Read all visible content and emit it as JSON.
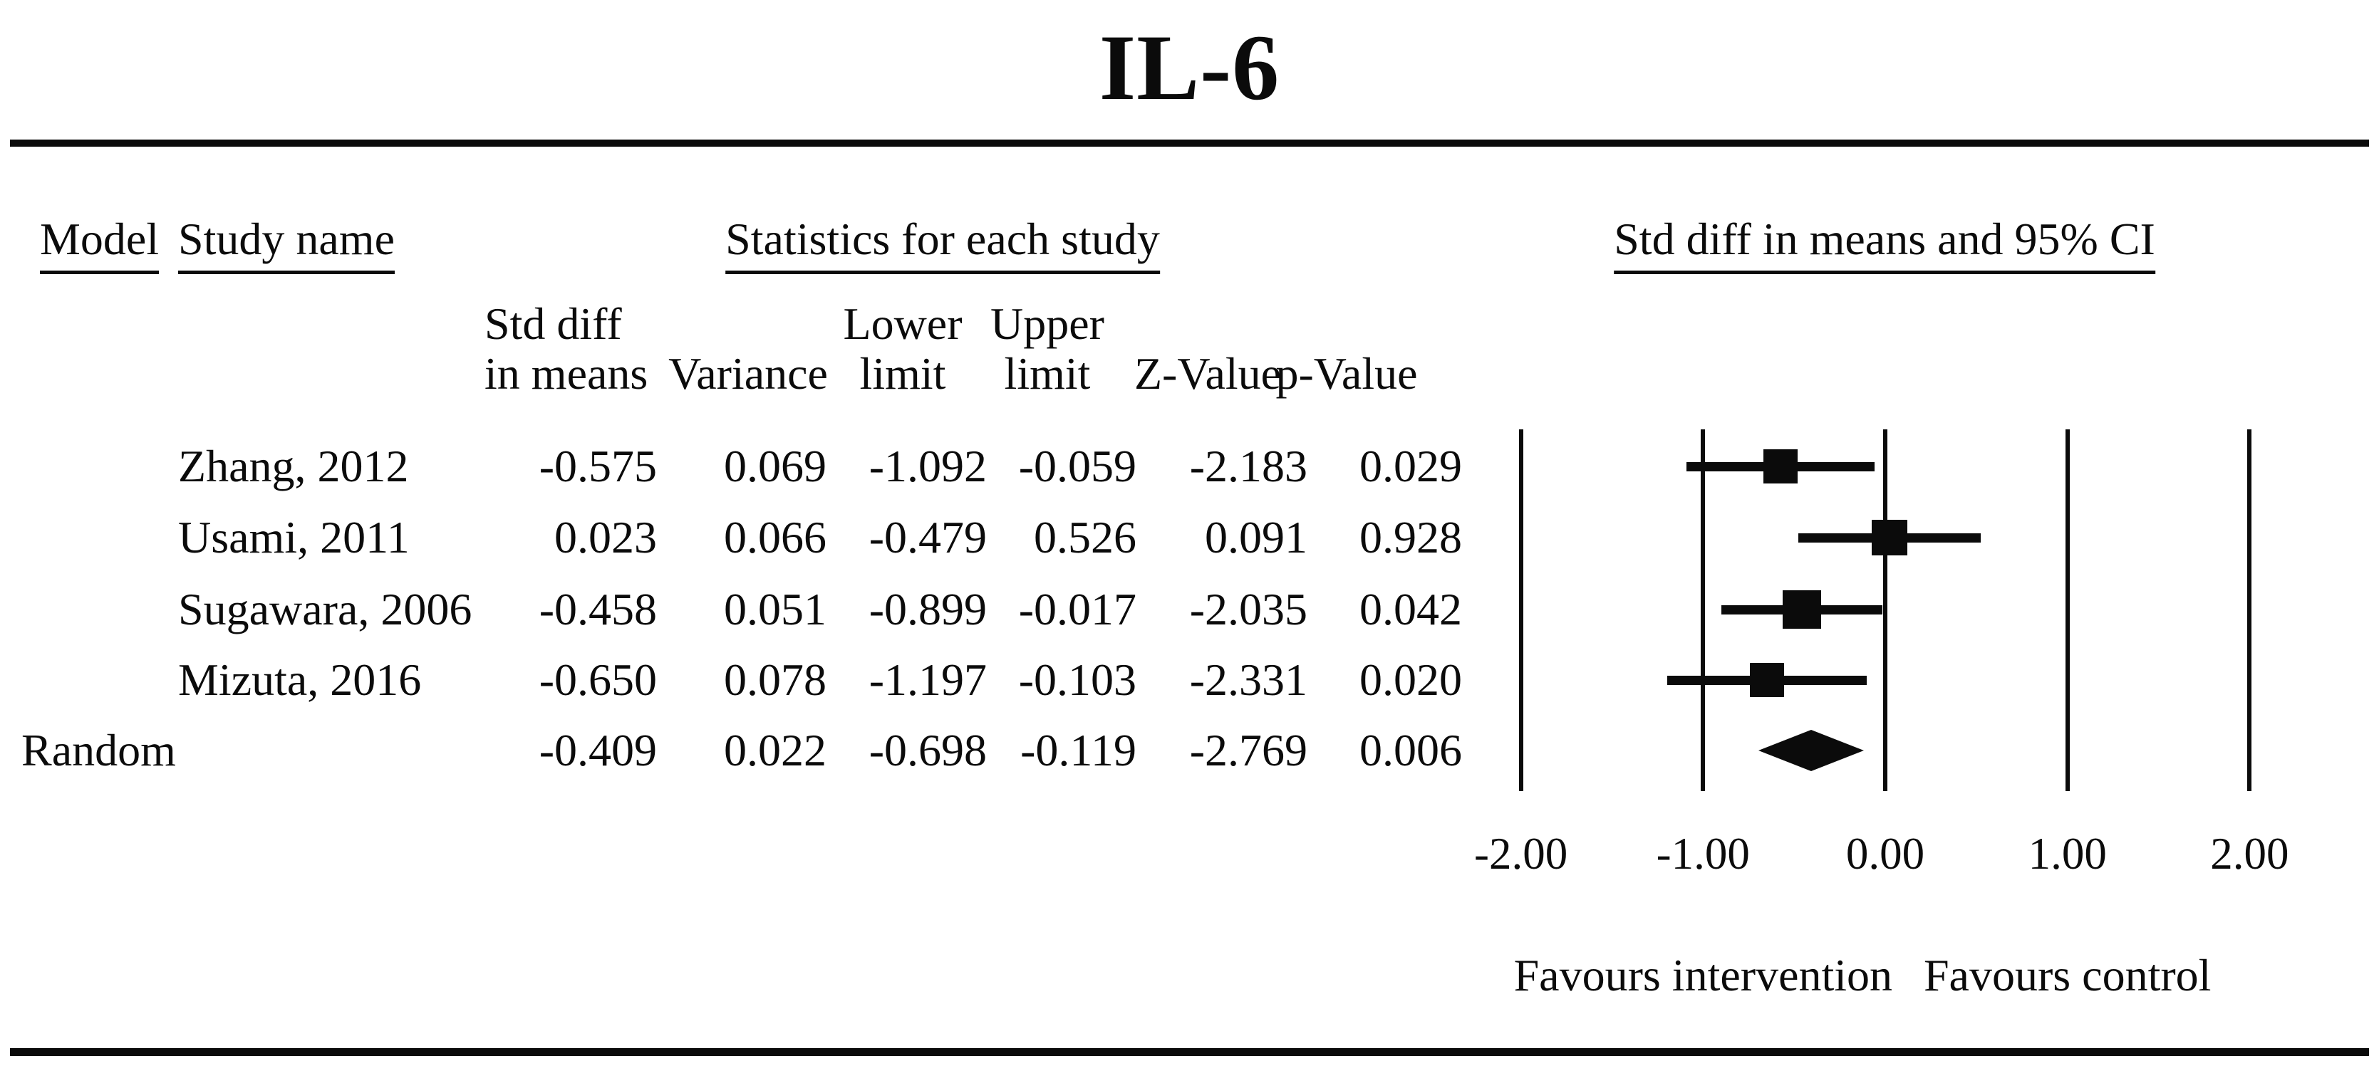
{
  "title": "IL-6",
  "header": {
    "model": "Model",
    "study_name": "Study name",
    "stats_group": "Statistics for each study",
    "plot_group": "Std diff in means and 95% CI",
    "sub_columns": [
      {
        "line1": "Std diff",
        "line2": "in means"
      },
      {
        "line1": "",
        "line2": "Variance"
      },
      {
        "line1": "Lower",
        "line2": "limit"
      },
      {
        "line1": "Upper",
        "line2": "limit"
      },
      {
        "line1": "",
        "line2": "Z-Value"
      },
      {
        "line1": "",
        "line2": "p-Value"
      }
    ]
  },
  "table": {
    "rows": [
      {
        "model": "",
        "study": "Zhang, 2012",
        "std_diff": "-0.575",
        "variance": "0.069",
        "lower": "-1.092",
        "upper": "-0.059",
        "z": "-2.183",
        "p": "0.029"
      },
      {
        "model": "",
        "study": "Usami, 2011",
        "std_diff": "0.023",
        "variance": "0.066",
        "lower": "-0.479",
        "upper": "0.526",
        "z": "0.091",
        "p": "0.928"
      },
      {
        "model": "",
        "study": "Sugawara, 2006",
        "std_diff": "-0.458",
        "variance": "0.051",
        "lower": "-0.899",
        "upper": "-0.017",
        "z": "-2.035",
        "p": "0.042"
      },
      {
        "model": "",
        "study": "Mizuta, 2016",
        "std_diff": "-0.650",
        "variance": "0.078",
        "lower": "-1.197",
        "upper": "-0.103",
        "z": "-2.331",
        "p": "0.020"
      },
      {
        "model": "Random",
        "study": "",
        "std_diff": "-0.409",
        "variance": "0.022",
        "lower": "-0.698",
        "upper": "-0.119",
        "z": "-2.769",
        "p": "0.006"
      }
    ]
  },
  "chart_data": {
    "type": "forest",
    "title": "IL-6",
    "effect_measure_label": "Std diff in means and 95% CI",
    "x_axis": {
      "tick_labels": [
        "-2.00",
        "-1.00",
        "0.00",
        "1.00",
        "2.00"
      ],
      "tick_values": [
        -2,
        -1,
        0,
        1,
        2
      ],
      "grid": "vertical-lines"
    },
    "studies": [
      {
        "name": "Zhang, 2012",
        "std_diff": -0.575,
        "lower": -1.092,
        "upper": -0.059,
        "marker": "square"
      },
      {
        "name": "Usami, 2011",
        "std_diff": 0.023,
        "lower": -0.479,
        "upper": 0.526,
        "marker": "square"
      },
      {
        "name": "Sugawara, 2006",
        "std_diff": -0.458,
        "lower": -0.899,
        "upper": -0.017,
        "marker": "square"
      },
      {
        "name": "Mizuta, 2016",
        "std_diff": -0.65,
        "lower": -1.197,
        "upper": -0.103,
        "marker": "square"
      },
      {
        "name": "Random",
        "std_diff": -0.409,
        "lower": -0.698,
        "upper": -0.119,
        "marker": "diamond"
      }
    ],
    "footer_labels": {
      "left": "Favours intervention",
      "right": "Favours control"
    }
  }
}
